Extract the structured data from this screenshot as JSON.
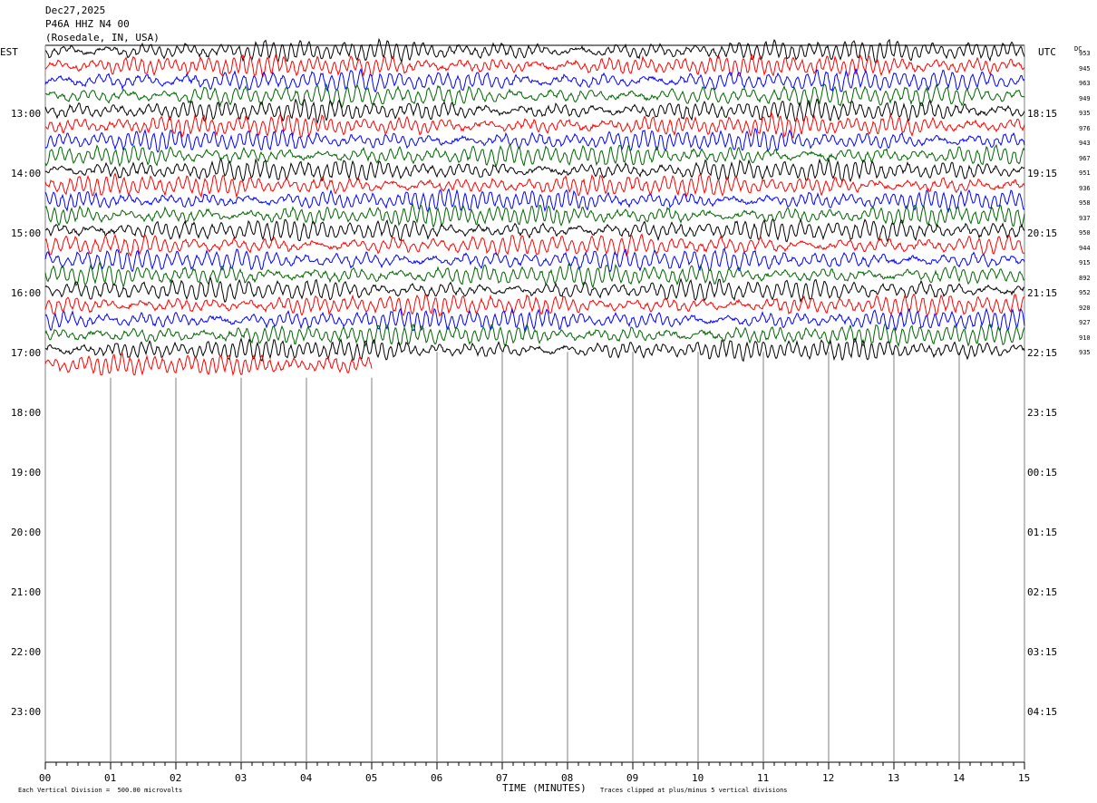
{
  "header": {
    "date": "Dec27,2025",
    "station": "P46A HHZ N4 00",
    "location": "(Rosedale, IN, USA)"
  },
  "left_axis_label": "EST",
  "right_axis_label": "UTC",
  "dc_header": "DC",
  "left_hours": [
    "13:00",
    "14:00",
    "15:00",
    "16:00",
    "17:00",
    "18:00",
    "19:00",
    "20:00",
    "21:00",
    "22:00",
    "23:00"
  ],
  "right_hours": [
    "18:15",
    "19:15",
    "20:15",
    "21:15",
    "22:15",
    "23:15",
    "00:15",
    "01:15",
    "02:15",
    "03:15",
    "04:15"
  ],
  "dc_values": [
    "953",
    "945",
    "963",
    "949",
    "935",
    "976",
    "943",
    "967",
    "951",
    "936",
    "958",
    "937",
    "950",
    "944",
    "915",
    "892",
    "952",
    "920",
    "927",
    "910",
    "935"
  ],
  "footer": {
    "scale_note": "Each Vertical Division =  500.00 microvolts",
    "xlabel": "TIME (MINUTES)",
    "clip_note": "Traces clipped at plus/minus 5 vertical divisions"
  },
  "colors": {
    "trace_cycle": [
      "#000000",
      "#ff0000",
      "#0000ff",
      "#006400"
    ],
    "grid": "#808080"
  },
  "chart_data": {
    "type": "line",
    "subtype": "helicorder",
    "x_ticks": [
      "00",
      "01",
      "02",
      "03",
      "04",
      "05",
      "06",
      "07",
      "08",
      "09",
      "10",
      "11",
      "12",
      "13",
      "14",
      "15"
    ],
    "x_range_minutes": [
      0,
      15
    ],
    "traces_total": 22,
    "trace_minutes_per_line": 15,
    "last_trace_end_minute": 5,
    "scale_microvolts_per_division": 500,
    "clip_divisions": 5,
    "grid": "vertical minute lines"
  }
}
